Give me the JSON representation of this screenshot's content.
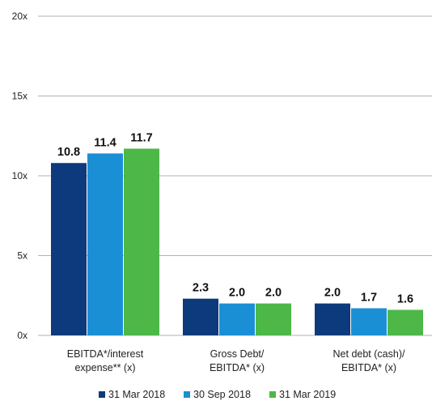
{
  "chart_data": {
    "type": "bar",
    "title": "",
    "xlabel": "",
    "ylabel": "",
    "ylim": [
      0,
      20
    ],
    "yticks": [
      {
        "value": 0,
        "label": "0x"
      },
      {
        "value": 5,
        "label": "5x"
      },
      {
        "value": 10,
        "label": "10x"
      },
      {
        "value": 15,
        "label": "15x"
      },
      {
        "value": 20,
        "label": "20x"
      }
    ],
    "categories": [
      [
        "EBITDA*/interest",
        "expense** (x)"
      ],
      [
        "Gross Debt/",
        "EBITDA* (x)"
      ],
      [
        "Net debt (cash)/",
        "EBITDA* (x)"
      ]
    ],
    "series": [
      {
        "name": "31 Mar 2018",
        "color": "#0d3a7c",
        "values": [
          10.8,
          2.3,
          2.0
        ],
        "labels": [
          "10.8",
          "2.3",
          "2.0"
        ]
      },
      {
        "name": "30 Sep 2018",
        "color": "#1b8fd6",
        "values": [
          11.4,
          2.0,
          1.7
        ],
        "labels": [
          "11.4",
          "2.0",
          "1.7"
        ]
      },
      {
        "name": "31 Mar 2019",
        "color": "#4db848",
        "values": [
          11.7,
          2.0,
          1.6
        ],
        "labels": [
          "11.7",
          "2.0",
          "1.6"
        ]
      }
    ],
    "grid": true,
    "legend_position": "bottom"
  }
}
